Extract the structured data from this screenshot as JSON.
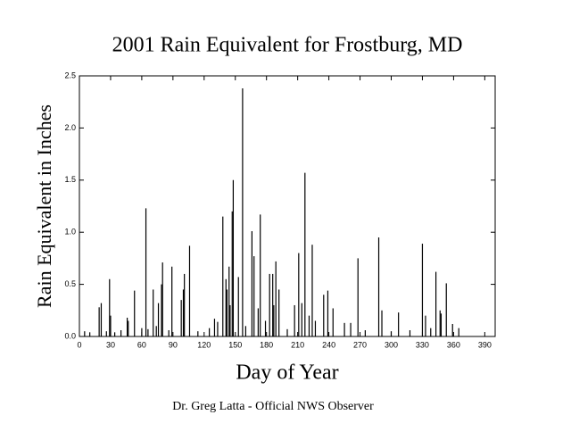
{
  "chart_data": {
    "type": "needle",
    "title": "2001 Rain Equivalent for Frostburg, MD",
    "xlabel": "Day of Year",
    "ylabel": "Rain Equivalent in Inches",
    "annotation": "Dr. Greg Latta - Official NWS Observer",
    "color": "#000000",
    "x": [
      5,
      10,
      19,
      21,
      26,
      29,
      30,
      34,
      40,
      46,
      47,
      53,
      60,
      64,
      66,
      71,
      74,
      76,
      79,
      80,
      86,
      89,
      98,
      100,
      101,
      106,
      114,
      125,
      130,
      133,
      138,
      141,
      142,
      144,
      145,
      147,
      148,
      153,
      157,
      160,
      166,
      168,
      172,
      174,
      179,
      183,
      186,
      187,
      189,
      192,
      200,
      207,
      211,
      214,
      217,
      221,
      224,
      227,
      235,
      239,
      244,
      255,
      261,
      268,
      275,
      288,
      291,
      300,
      307,
      318,
      330,
      333,
      338,
      343,
      347,
      348,
      353,
      359,
      365
    ],
    "values": [
      0.05,
      0.04,
      0.28,
      0.32,
      0.05,
      0.55,
      0.2,
      0.04,
      0.06,
      0.18,
      0.15,
      0.44,
      0.08,
      1.23,
      0.07,
      0.45,
      0.1,
      0.32,
      0.5,
      0.71,
      0.06,
      0.67,
      0.35,
      0.45,
      0.6,
      0.87,
      0.05,
      0.08,
      0.17,
      0.14,
      1.15,
      0.55,
      0.45,
      0.67,
      0.3,
      1.2,
      1.5,
      0.57,
      2.38,
      0.1,
      1.01,
      0.77,
      0.27,
      1.17,
      0.15,
      0.6,
      0.6,
      0.3,
      0.72,
      0.45,
      0.07,
      0.3,
      0.8,
      0.32,
      1.57,
      0.2,
      0.88,
      0.15,
      0.4,
      0.44,
      0.27,
      0.13,
      0.13,
      0.75,
      0.06,
      0.95,
      0.25,
      0.05,
      0.23,
      0.06,
      0.89,
      0.2,
      0.08,
      0.62,
      0.25,
      0.22,
      0.51,
      0.12,
      0.08
    ],
    "xlim": [
      0,
      400
    ],
    "xticks": [
      0,
      30,
      60,
      90,
      120,
      150,
      180,
      210,
      240,
      270,
      300,
      330,
      360,
      390
    ],
    "ylim": [
      0,
      2.5
    ],
    "yticks": [
      {
        "value": 0,
        "label": "0.0"
      },
      {
        "value": 0.5,
        "label": "0.5"
      },
      {
        "value": 1,
        "label": "1.0"
      },
      {
        "value": 1.5,
        "label": "1.5"
      },
      {
        "value": 2,
        "label": "2.0"
      },
      {
        "value": 2.5,
        "label": "2.5"
      }
    ]
  }
}
